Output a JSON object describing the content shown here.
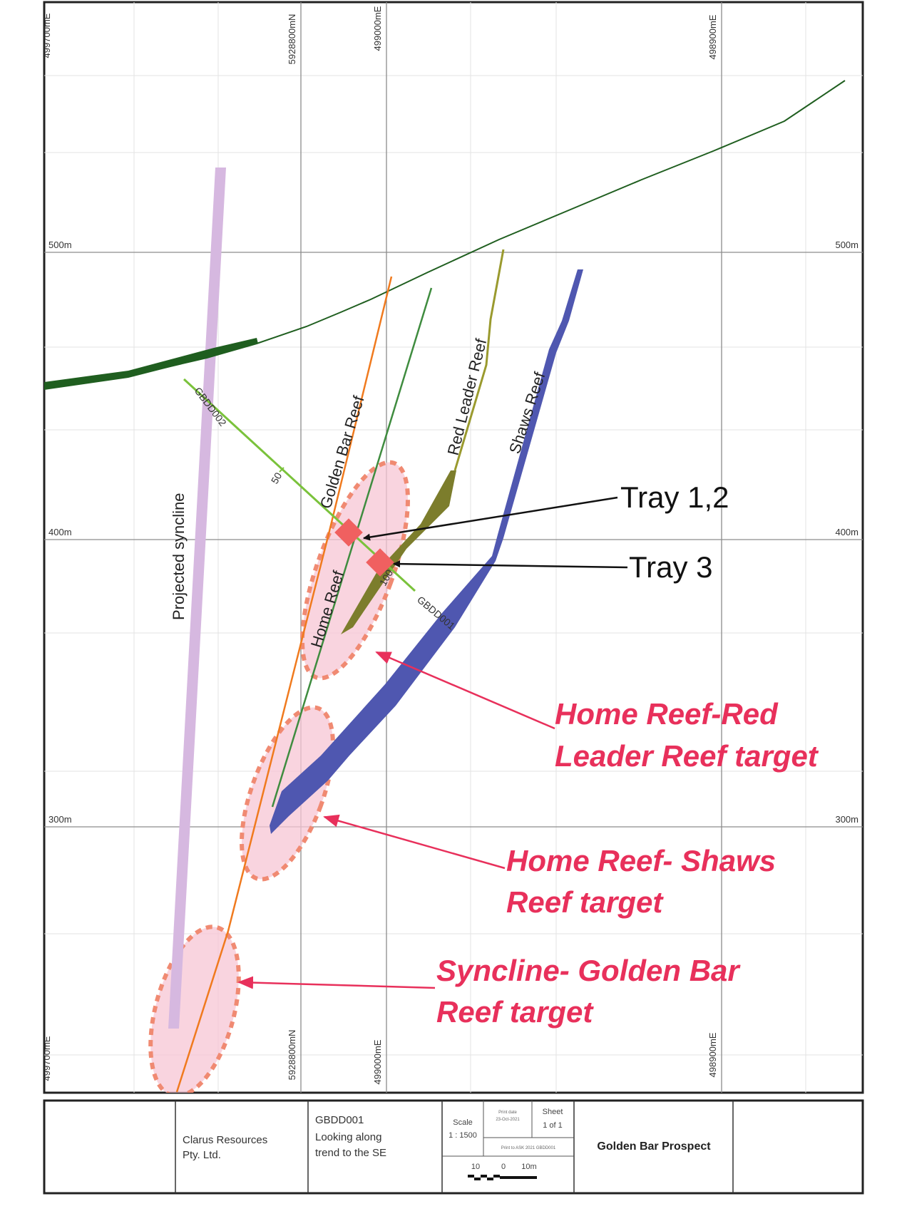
{
  "grid": {
    "easting_labels": {
      "left_edge": "499700mE",
      "northing": "5928800mN",
      "mid": "499000mE",
      "right": "498900mE"
    },
    "elevation_labels": [
      "500m",
      "400m",
      "300m"
    ]
  },
  "features": {
    "projected_syncline": "Projected syncline",
    "golden_bar_reef": "Golden Bar Reef",
    "red_leader_reef": "Red Leader Reef",
    "shaws_reef": "Shaws Reef",
    "home_reef": "Home Reef"
  },
  "drillholes": {
    "gbdd002": "GBDD002",
    "gbdd001": "GBDD001",
    "depth_50": "50",
    "depth_100": "100"
  },
  "trays": {
    "tray_1_2": "Tray 1,2",
    "tray_3": "Tray 3"
  },
  "targets": {
    "home_red_line1": "Home Reef-Red",
    "home_red_line2": "Leader Reef target",
    "home_shaws_line1": "Home Reef- Shaws",
    "home_shaws_line2": "Reef target",
    "syncline_line1": "Syncline- Golden Bar",
    "syncline_line2": "Reef target"
  },
  "title_block": {
    "company_line1": "Clarus Resources",
    "company_line2": "Pty. Ltd.",
    "desc_line1": "GBDD001",
    "desc_line2": "Looking along",
    "desc_line3": "trend to the SE",
    "scale_label": "Scale",
    "scale_value": "1 : 1500",
    "date_small": "Print date",
    "date_value": "23-Oct-2021",
    "sheet_label": "Sheet",
    "sheet_value": "1 of 1",
    "file_small": "Print to ASK 2021 GBDD001",
    "scalebar_left": "10",
    "scalebar_mid": "0",
    "scalebar_right": "10m",
    "project": "Golden Bar Prospect"
  },
  "colors": {
    "surface": "#1f5e1f",
    "syncline": "#d6b8e0",
    "golden_bar": "#f07a1e",
    "home_reef": "#3f8c3f",
    "red_leader": "#7c7d2c",
    "shaws": "#4f57b0",
    "drillhole": "#7ac23b",
    "target_fill": "#f7c6d4",
    "target_border": "#f08a72",
    "tray": "#f06060",
    "target_text": "#e8305b"
  }
}
